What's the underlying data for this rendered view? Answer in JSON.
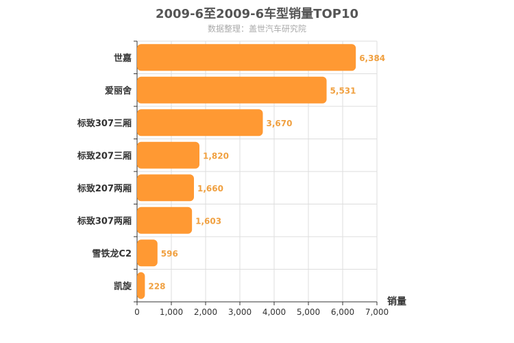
{
  "chart_data": {
    "type": "bar",
    "orientation": "horizontal",
    "title": "2009-6至2009-6车型销量TOP10",
    "subtitle": "数据整理：盖世汽车研究院",
    "categories": [
      "世嘉",
      "爱丽舍",
      "标致307三厢",
      "标致207三厢",
      "标致207两厢",
      "标致307两厢",
      "雪铁龙C2",
      "凯旋"
    ],
    "values": [
      6384,
      5531,
      3670,
      1820,
      1660,
      1603,
      596,
      228
    ],
    "value_labels": [
      "6,384",
      "5,531",
      "3,670",
      "1,820",
      "1,660",
      "1,603",
      "596",
      "228"
    ],
    "xlabel": "销量",
    "xlim": [
      0,
      7000
    ],
    "x_ticks": [
      0,
      1000,
      2000,
      3000,
      4000,
      5000,
      6000,
      7000
    ],
    "x_tick_labels": [
      "0",
      "1,000",
      "2,000",
      "3,000",
      "4,000",
      "5,000",
      "6,000",
      "7,000"
    ],
    "grid": true,
    "bar_color": "#ff9933",
    "value_label_color": "#f0a040"
  }
}
